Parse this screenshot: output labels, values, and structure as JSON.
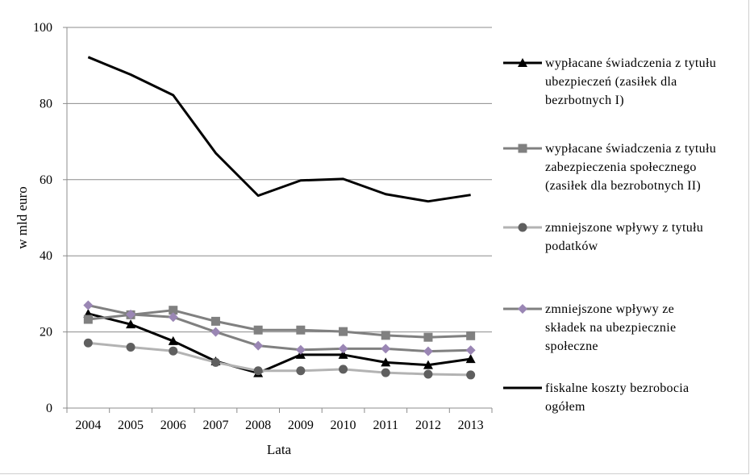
{
  "chart_data": {
    "type": "line",
    "title": "",
    "xlabel": "Lata",
    "ylabel": "w mld euro",
    "ylim": [
      0,
      100
    ],
    "yticks": [
      0,
      20,
      40,
      60,
      80,
      100
    ],
    "grid": "horizontal",
    "legend_position": "right",
    "categories": [
      "2004",
      "2005",
      "2006",
      "2007",
      "2008",
      "2009",
      "2010",
      "2011",
      "2012",
      "2013"
    ],
    "series": [
      {
        "name": "wypłacane świadczenia z tytułu ubezpieczeń (zasiłek dla bezrbotnych I)",
        "legend_lines": [
          "wypłacane świadczenia z tytułu",
          "ubezpieczeń (zasiłek dla",
          "bezrbotnych I)"
        ],
        "color": "#000000",
        "marker": "triangle",
        "values": [
          24.8,
          22.0,
          17.6,
          12.3,
          9.2,
          14.0,
          14.0,
          12.0,
          11.3,
          12.9
        ]
      },
      {
        "name": "wypłacane świadczenia z tytułu zabezpieczenia społecznego (zasiłek dla bezrobotnych II)",
        "legend_lines": [
          "wypłacane świadczenia z tytułu",
          "zabezpieczenia społecznego",
          "(zasiłek dla bezrobotnych II)"
        ],
        "color": "#808080",
        "marker": "square",
        "values": [
          23.3,
          24.5,
          25.7,
          22.8,
          20.5,
          20.5,
          20.1,
          19.1,
          18.6,
          19.0
        ]
      },
      {
        "name": "zmniejszone wpływy z tytułu podatków",
        "legend_lines": [
          "zmniejszone wpływy z tytułu",
          "podatków"
        ],
        "color": "#b3b3b3",
        "marker": "circle",
        "values": [
          17.1,
          16.0,
          15.0,
          12.0,
          9.8,
          9.8,
          10.2,
          9.3,
          8.9,
          8.7
        ]
      },
      {
        "name": "zmniejszone wpływy ze składek na ubezpiecznie społeczne",
        "legend_lines": [
          "zmniejszone wpływy ze",
          "składek na ubezpiecznie",
          "społeczne"
        ],
        "color": "#808080",
        "marker_color": "#9a86b4",
        "marker": "diamond",
        "values": [
          27.0,
          24.6,
          23.9,
          20.0,
          16.4,
          15.3,
          15.6,
          15.6,
          14.9,
          15.2
        ]
      },
      {
        "name": "fiskalne koszty bezrobocia ogółem",
        "legend_lines": [
          "fiskalne koszty bezrobocia",
          "ogółem"
        ],
        "color": "#000000",
        "marker": "none",
        "values": [
          92.2,
          87.6,
          82.2,
          67.0,
          55.8,
          59.8,
          60.2,
          56.2,
          54.3,
          56.0
        ]
      }
    ]
  }
}
